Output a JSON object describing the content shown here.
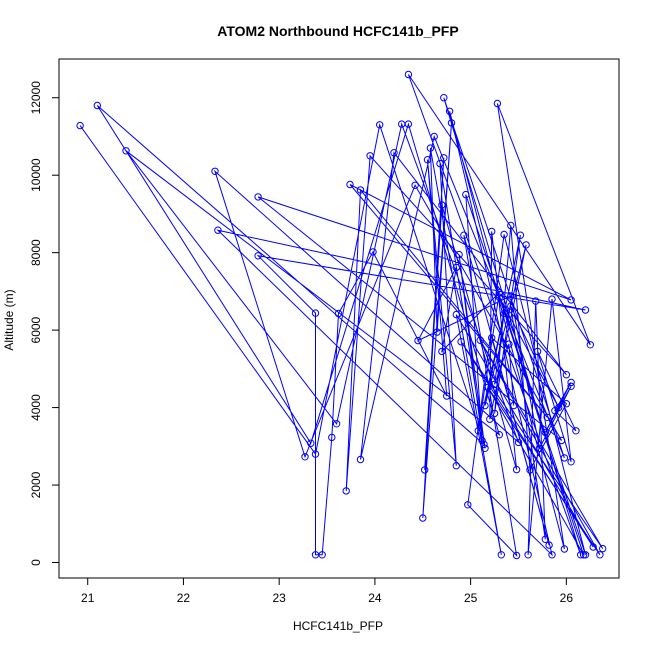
{
  "chart_data": {
    "type": "line",
    "title": "ATOM2 Northbound HCFC141b_PFP",
    "xlabel": "HCFC141b_PFP",
    "ylabel": "Altitude (m)",
    "xlim": [
      20.7,
      26.55
    ],
    "ylim": [
      -400,
      13000
    ],
    "x_ticks": [
      21,
      22,
      23,
      24,
      25,
      26
    ],
    "y_ticks": [
      0,
      2000,
      4000,
      6000,
      8000,
      10000,
      12000
    ],
    "grid": false,
    "line_color": "#0000ff",
    "marker": "open-circle",
    "series": [
      {
        "points": [
          {
            "x": 20.92,
            "y": 11280
          },
          {
            "x": 23.38,
            "y": 2800
          },
          {
            "x": 24.05,
            "y": 11300
          },
          {
            "x": 25.14,
            "y": 3050
          },
          {
            "x": 21.1,
            "y": 11800
          },
          {
            "x": 23.33,
            "y": 3080
          },
          {
            "x": 24.35,
            "y": 11320
          },
          {
            "x": 25.3,
            "y": 3300
          },
          {
            "x": 21.4,
            "y": 10630
          },
          {
            "x": 23.6,
            "y": 3580
          },
          {
            "x": 24.28,
            "y": 11320
          },
          {
            "x": 25.5,
            "y": 3100
          },
          {
            "x": 22.33,
            "y": 10100
          },
          {
            "x": 23.27,
            "y": 2730
          },
          {
            "x": 24.42,
            "y": 9740
          },
          {
            "x": 25.95,
            "y": 3150
          },
          {
            "x": 22.78,
            "y": 9440
          },
          {
            "x": 26.05,
            "y": 6780
          },
          {
            "x": 23.74,
            "y": 9760
          },
          {
            "x": 25.8,
            "y": 3750
          },
          {
            "x": 23.85,
            "y": 9620
          },
          {
            "x": 23.7,
            "y": 1850
          },
          {
            "x": 23.95,
            "y": 10500
          },
          {
            "x": 26.0,
            "y": 4850
          },
          {
            "x": 24.2,
            "y": 10580
          },
          {
            "x": 23.85,
            "y": 2660
          },
          {
            "x": 24.62,
            "y": 11000
          },
          {
            "x": 25.98,
            "y": 2700
          },
          {
            "x": 24.72,
            "y": 12000
          },
          {
            "x": 26.15,
            "y": 200
          },
          {
            "x": 24.35,
            "y": 12600
          },
          {
            "x": 26.25,
            "y": 5620
          },
          {
            "x": 25.28,
            "y": 11850
          },
          {
            "x": 25.98,
            "y": 350
          },
          {
            "x": 24.78,
            "y": 11650
          },
          {
            "x": 25.85,
            "y": 200
          },
          {
            "x": 22.36,
            "y": 8580
          },
          {
            "x": 26.2,
            "y": 6520
          },
          {
            "x": 22.78,
            "y": 7920
          },
          {
            "x": 23.38,
            "y": 6440
          },
          {
            "x": 23.38,
            "y": 200
          },
          {
            "x": 23.45,
            "y": 200
          },
          {
            "x": 23.55,
            "y": 3230
          },
          {
            "x": 23.62,
            "y": 6430
          },
          {
            "x": 23.98,
            "y": 8020
          },
          {
            "x": 24.75,
            "y": 4300
          },
          {
            "x": 24.55,
            "y": 10400
          },
          {
            "x": 24.85,
            "y": 2500
          },
          {
            "x": 24.68,
            "y": 10300
          },
          {
            "x": 25.15,
            "y": 2950
          },
          {
            "x": 24.88,
            "y": 7950
          },
          {
            "x": 25.12,
            "y": 3150
          },
          {
            "x": 24.95,
            "y": 9500
          },
          {
            "x": 26.2,
            "y": 200
          },
          {
            "x": 25.35,
            "y": 8470
          },
          {
            "x": 24.97,
            "y": 1490
          },
          {
            "x": 25.48,
            "y": 180
          },
          {
            "x": 24.93,
            "y": 8450
          },
          {
            "x": 25.82,
            "y": 450
          },
          {
            "x": 25.22,
            "y": 5800
          },
          {
            "x": 26.0,
            "y": 4100
          },
          {
            "x": 25.62,
            "y": 2390
          },
          {
            "x": 25.42,
            "y": 8700
          },
          {
            "x": 25.25,
            "y": 3850
          },
          {
            "x": 25.52,
            "y": 8450
          },
          {
            "x": 25.15,
            "y": 4050
          },
          {
            "x": 25.58,
            "y": 8200
          },
          {
            "x": 25.2,
            "y": 3700
          },
          {
            "x": 25.22,
            "y": 8550
          },
          {
            "x": 25.48,
            "y": 2400
          },
          {
            "x": 24.7,
            "y": 9230
          },
          {
            "x": 24.52,
            "y": 2390
          },
          {
            "x": 24.72,
            "y": 10450
          },
          {
            "x": 24.5,
            "y": 1150
          },
          {
            "x": 24.8,
            "y": 11350
          },
          {
            "x": 24.65,
            "y": 5950
          },
          {
            "x": 24.58,
            "y": 10700
          },
          {
            "x": 25.32,
            "y": 200
          },
          {
            "x": 24.85,
            "y": 6400
          },
          {
            "x": 26.28,
            "y": 400
          },
          {
            "x": 24.9,
            "y": 5700
          },
          {
            "x": 26.38,
            "y": 360
          },
          {
            "x": 25.1,
            "y": 5740
          },
          {
            "x": 26.35,
            "y": 200
          },
          {
            "x": 25.18,
            "y": 4520
          },
          {
            "x": 26.18,
            "y": 200
          },
          {
            "x": 25.3,
            "y": 6850
          },
          {
            "x": 25.92,
            "y": 4000
          },
          {
            "x": 25.42,
            "y": 6620
          },
          {
            "x": 25.78,
            "y": 600
          },
          {
            "x": 25.68,
            "y": 6750
          },
          {
            "x": 25.6,
            "y": 200
          },
          {
            "x": 25.85,
            "y": 6800
          },
          {
            "x": 26.05,
            "y": 2600
          },
          {
            "x": 25.7,
            "y": 5450
          },
          {
            "x": 26.1,
            "y": 3400
          },
          {
            "x": 25.88,
            "y": 3920
          },
          {
            "x": 26.05,
            "y": 4650
          },
          {
            "x": 25.78,
            "y": 3360
          },
          {
            "x": 26.05,
            "y": 4550
          },
          {
            "x": 25.72,
            "y": 2950
          },
          {
            "x": 25.42,
            "y": 6880
          },
          {
            "x": 24.45,
            "y": 5730
          },
          {
            "x": 24.85,
            "y": 7620
          },
          {
            "x": 24.7,
            "y": 5450
          },
          {
            "x": 25.3,
            "y": 6970
          },
          {
            "x": 25.08,
            "y": 3400
          },
          {
            "x": 25.35,
            "y": 6430
          },
          {
            "x": 25.25,
            "y": 4600
          },
          {
            "x": 25.4,
            "y": 5640
          },
          {
            "x": 25.45,
            "y": 4050
          }
        ]
      }
    ]
  }
}
